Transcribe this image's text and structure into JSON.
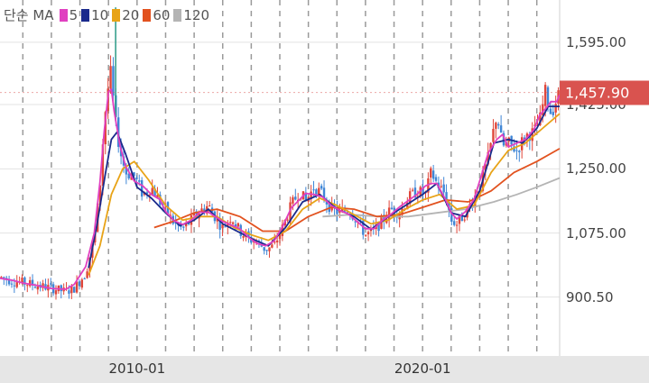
{
  "chart_data": {
    "type": "candlestick",
    "legend": {
      "title": "단순 MA",
      "items": [
        {
          "label": "5",
          "color": "#e040c0"
        },
        {
          "label": "10",
          "color": "#1a2a8c"
        },
        {
          "label": "20",
          "color": "#e8a317"
        },
        {
          "label": "60",
          "color": "#e2521f"
        },
        {
          "label": "120",
          "color": "#b4b4b4"
        }
      ]
    },
    "colors": {
      "up": "#e0463a",
      "down": "#3f86d6",
      "current": "#d9534f"
    },
    "x_ticks": [
      {
        "label": "2010-01",
        "year": 2010.0
      },
      {
        "label": "2020-01",
        "year": 2020.0
      }
    ],
    "y_ticks": [
      {
        "label": "1,595.00",
        "value": 1595
      },
      {
        "label": "1,250.00",
        "value": 1250
      },
      {
        "label": "1,075.00",
        "value": 1075
      },
      {
        "label": "900.50",
        "value": 900.5
      }
    ],
    "y_hidden_tick": {
      "label": "1,425.00",
      "value": 1425
    },
    "current_price": {
      "label": "1,457.90",
      "value": 1457.9
    },
    "x_range": [
      2005.2,
      2024.8
    ],
    "y_range": [
      740,
      1710
    ],
    "close_path": [
      [
        2005.2,
        955
      ],
      [
        2005.6,
        945
      ],
      [
        2006.0,
        940
      ],
      [
        2006.5,
        932
      ],
      [
        2007.0,
        925
      ],
      [
        2007.5,
        915
      ],
      [
        2007.8,
        925
      ],
      [
        2008.2,
        965
      ],
      [
        2008.5,
        1060
      ],
      [
        2008.7,
        1200
      ],
      [
        2008.85,
        1380
      ],
      [
        2009.0,
        1480
      ],
      [
        2009.1,
        1520
      ],
      [
        2009.2,
        1400
      ],
      [
        2009.4,
        1300
      ],
      [
        2009.6,
        1240
      ],
      [
        2009.9,
        1230
      ],
      [
        2010.2,
        1180
      ],
      [
        2010.5,
        1200
      ],
      [
        2010.8,
        1160
      ],
      [
        2011.0,
        1140
      ],
      [
        2011.3,
        1100
      ],
      [
        2011.6,
        1085
      ],
      [
        2011.9,
        1110
      ],
      [
        2012.2,
        1135
      ],
      [
        2012.5,
        1150
      ],
      [
        2012.8,
        1110
      ],
      [
        2013.0,
        1090
      ],
      [
        2013.3,
        1120
      ],
      [
        2013.6,
        1080
      ],
      [
        2013.9,
        1060
      ],
      [
        2014.2,
        1050
      ],
      [
        2014.5,
        1030
      ],
      [
        2014.8,
        1040
      ],
      [
        2015.1,
        1090
      ],
      [
        2015.4,
        1150
      ],
      [
        2015.7,
        1190
      ],
      [
        2015.9,
        1160
      ],
      [
        2016.2,
        1200
      ],
      [
        2016.5,
        1180
      ],
      [
        2016.8,
        1140
      ],
      [
        2017.1,
        1130
      ],
      [
        2017.4,
        1140
      ],
      [
        2017.7,
        1110
      ],
      [
        2018.0,
        1070
      ],
      [
        2018.3,
        1080
      ],
      [
        2018.6,
        1110
      ],
      [
        2018.9,
        1140
      ],
      [
        2019.2,
        1130
      ],
      [
        2019.5,
        1170
      ],
      [
        2019.8,
        1190
      ],
      [
        2020.1,
        1180
      ],
      [
        2020.3,
        1240
      ],
      [
        2020.5,
        1210
      ],
      [
        2020.8,
        1180
      ],
      [
        2021.0,
        1110
      ],
      [
        2021.2,
        1100
      ],
      [
        2021.5,
        1130
      ],
      [
        2021.8,
        1170
      ],
      [
        2022.0,
        1200
      ],
      [
        2022.3,
        1280
      ],
      [
        2022.6,
        1400
      ],
      [
        2022.8,
        1310
      ],
      [
        2023.0,
        1320
      ],
      [
        2023.3,
        1300
      ],
      [
        2023.6,
        1340
      ],
      [
        2023.9,
        1350
      ],
      [
        2024.1,
        1380
      ],
      [
        2024.3,
        1460
      ],
      [
        2024.5,
        1400
      ],
      [
        2024.7,
        1440
      ],
      [
        2024.8,
        1458
      ]
    ],
    "ma_paths": [
      {
        "label": "10",
        "points": [
          [
            2008.3,
            980
          ],
          [
            2008.6,
            1100
          ],
          [
            2008.9,
            1240
          ],
          [
            2009.1,
            1330
          ],
          [
            2009.3,
            1350
          ],
          [
            2009.6,
            1290
          ],
          [
            2010.0,
            1200
          ],
          [
            2010.5,
            1170
          ],
          [
            2011.0,
            1130
          ],
          [
            2011.5,
            1095
          ],
          [
            2012.0,
            1110
          ],
          [
            2012.5,
            1140
          ],
          [
            2013.0,
            1100
          ],
          [
            2013.5,
            1080
          ],
          [
            2014.0,
            1060
          ],
          [
            2014.6,
            1040
          ],
          [
            2015.2,
            1090
          ],
          [
            2015.8,
            1160
          ],
          [
            2016.4,
            1180
          ],
          [
            2017.0,
            1140
          ],
          [
            2017.6,
            1120
          ],
          [
            2018.2,
            1085
          ],
          [
            2018.8,
            1120
          ],
          [
            2019.4,
            1150
          ],
          [
            2020.0,
            1180
          ],
          [
            2020.5,
            1210
          ],
          [
            2021.0,
            1130
          ],
          [
            2021.5,
            1120
          ],
          [
            2022.0,
            1190
          ],
          [
            2022.5,
            1320
          ],
          [
            2023.0,
            1330
          ],
          [
            2023.5,
            1320
          ],
          [
            2024.0,
            1360
          ],
          [
            2024.4,
            1420
          ],
          [
            2024.8,
            1420
          ]
        ]
      },
      {
        "label": "20",
        "points": [
          [
            2008.3,
            960
          ],
          [
            2008.7,
            1040
          ],
          [
            2009.1,
            1180
          ],
          [
            2009.5,
            1250
          ],
          [
            2009.9,
            1270
          ],
          [
            2010.4,
            1220
          ],
          [
            2011.0,
            1150
          ],
          [
            2011.6,
            1110
          ],
          [
            2012.2,
            1120
          ],
          [
            2012.8,
            1120
          ],
          [
            2013.4,
            1090
          ],
          [
            2014.0,
            1070
          ],
          [
            2014.6,
            1055
          ],
          [
            2015.2,
            1080
          ],
          [
            2015.8,
            1140
          ],
          [
            2016.4,
            1170
          ],
          [
            2017.0,
            1150
          ],
          [
            2017.6,
            1125
          ],
          [
            2018.2,
            1100
          ],
          [
            2018.8,
            1110
          ],
          [
            2019.4,
            1140
          ],
          [
            2020.0,
            1165
          ],
          [
            2020.6,
            1180
          ],
          [
            2021.2,
            1140
          ],
          [
            2021.8,
            1150
          ],
          [
            2022.4,
            1240
          ],
          [
            2023.0,
            1300
          ],
          [
            2023.6,
            1320
          ],
          [
            2024.2,
            1360
          ],
          [
            2024.8,
            1400
          ]
        ]
      },
      {
        "label": "60",
        "points": [
          [
            2010.6,
            1090
          ],
          [
            2011.2,
            1105
          ],
          [
            2012.0,
            1130
          ],
          [
            2012.8,
            1140
          ],
          [
            2013.6,
            1120
          ],
          [
            2014.4,
            1080
          ],
          [
            2015.2,
            1080
          ],
          [
            2016.0,
            1120
          ],
          [
            2016.8,
            1145
          ],
          [
            2017.6,
            1140
          ],
          [
            2018.4,
            1120
          ],
          [
            2019.2,
            1125
          ],
          [
            2020.0,
            1145
          ],
          [
            2020.8,
            1165
          ],
          [
            2021.6,
            1160
          ],
          [
            2022.4,
            1190
          ],
          [
            2023.2,
            1240
          ],
          [
            2024.0,
            1270
          ],
          [
            2024.8,
            1305
          ]
        ]
      },
      {
        "label": "120",
        "points": [
          [
            2016.5,
            1120
          ],
          [
            2017.5,
            1125
          ],
          [
            2018.5,
            1120
          ],
          [
            2019.5,
            1120
          ],
          [
            2020.5,
            1130
          ],
          [
            2021.5,
            1140
          ],
          [
            2022.5,
            1160
          ],
          [
            2023.3,
            1180
          ],
          [
            2024.0,
            1200
          ],
          [
            2024.8,
            1225
          ]
        ]
      }
    ]
  }
}
